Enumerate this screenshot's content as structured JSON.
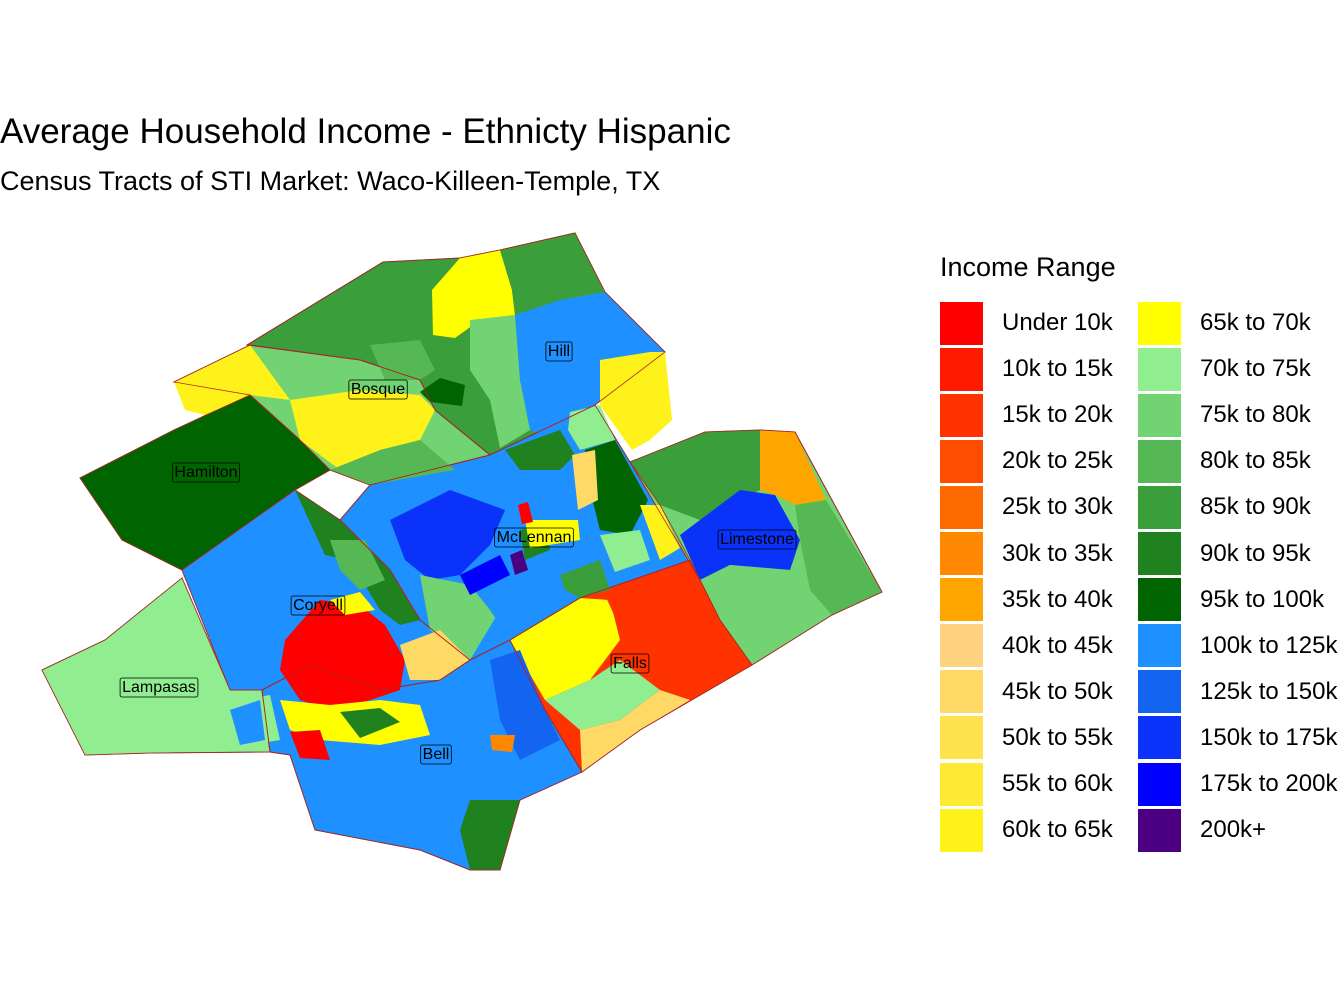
{
  "title": "Average Household Income - Ethnicty Hispanic",
  "subtitle": "Census Tracts of STI Market: Waco-Killeen-Temple, TX",
  "legend": {
    "title": "Income Range",
    "items": [
      {
        "label": "Under 10k",
        "color": "#ff0000"
      },
      {
        "label": "10k to 15k",
        "color": "#ff1a00"
      },
      {
        "label": "15k to 20k",
        "color": "#ff3300"
      },
      {
        "label": "20k to 25k",
        "color": "#ff4d00"
      },
      {
        "label": "25k to 30k",
        "color": "#ff6a00"
      },
      {
        "label": "30k to 35k",
        "color": "#ff8800"
      },
      {
        "label": "35k to 40k",
        "color": "#ffa500"
      },
      {
        "label": "40k to 45k",
        "color": "#ffd27f"
      },
      {
        "label": "45k to 50k",
        "color": "#ffd966"
      },
      {
        "label": "50k to 55k",
        "color": "#ffe24d"
      },
      {
        "label": "55k to 60k",
        "color": "#ffea33"
      },
      {
        "label": "60k to 65k",
        "color": "#fff21a"
      },
      {
        "label": "65k to 70k",
        "color": "#ffff00"
      },
      {
        "label": "70k to 75k",
        "color": "#90ee90"
      },
      {
        "label": "75k to 80k",
        "color": "#72d372"
      },
      {
        "label": "80k to 85k",
        "color": "#55b855"
      },
      {
        "label": "85k to 90k",
        "color": "#3a9e3a"
      },
      {
        "label": "90k to 95k",
        "color": "#1f821f"
      },
      {
        "label": "95k to 100k",
        "color": "#006400"
      },
      {
        "label": "100k to 125k",
        "color": "#1e90ff"
      },
      {
        "label": "125k to 150k",
        "color": "#1464f2"
      },
      {
        "label": "150k to 175k",
        "color": "#0a32f9"
      },
      {
        "label": "175k to 200k",
        "color": "#0000ff"
      },
      {
        "label": "200k+",
        "color": "#4b0082"
      }
    ]
  },
  "counties": [
    {
      "name": "Hill",
      "class": "85k to 90k"
    },
    {
      "name": "Bosque",
      "class": "75k to 80k"
    },
    {
      "name": "Hamilton",
      "class": "95k to 100k"
    },
    {
      "name": "McLennan",
      "class": "100k to 125k"
    },
    {
      "name": "Limestone",
      "class": "75k to 80k"
    },
    {
      "name": "Coryell",
      "class": "100k to 125k"
    },
    {
      "name": "Lampasas",
      "class": "70k to 75k"
    },
    {
      "name": "Falls",
      "class": "15k to 20k"
    },
    {
      "name": "Bell",
      "class": "100k to 125k"
    }
  ]
}
